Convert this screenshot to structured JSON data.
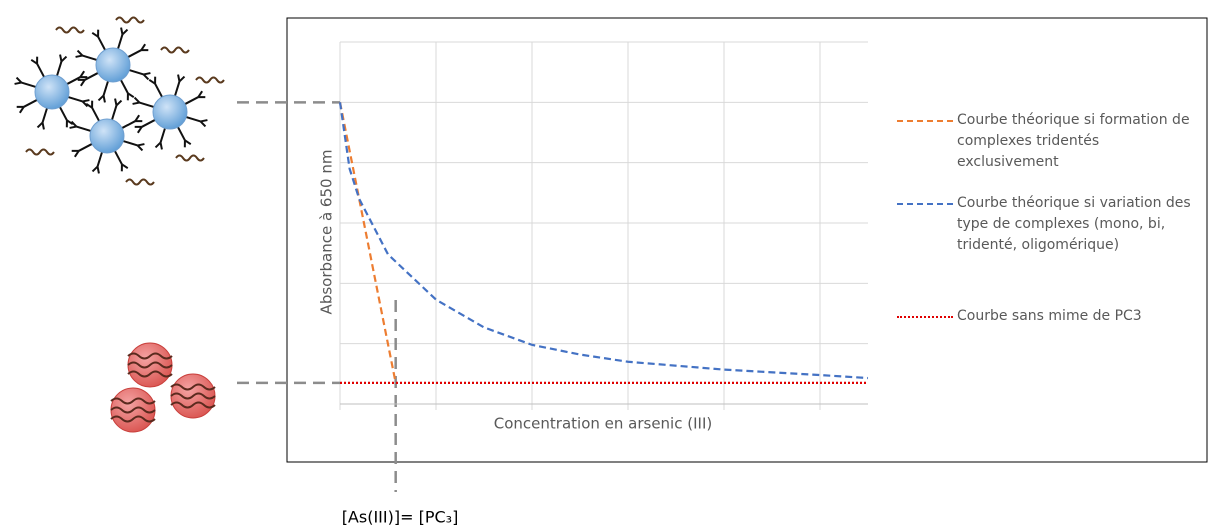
{
  "chart_data": {
    "type": "line",
    "x_label": "Concentration en arsenic (III)",
    "y_label": "Absorbance à 650 nm",
    "annotation": "[As(III)]= [PC₃]",
    "xlim": [
      0,
      5.5
    ],
    "ylim": [
      0,
      6
    ],
    "xticks": [
      0,
      1,
      2,
      3,
      4,
      5
    ],
    "yticks": [
      0,
      1,
      2,
      3,
      4,
      5,
      6
    ],
    "grid": true,
    "series": [
      {
        "name": "Courbe théorique si formation de complexes tridentés exclusivement",
        "color": "#ed7d31",
        "dash": "dashed",
        "x": [
          0,
          0.58
        ],
        "values": [
          5,
          0.35
        ]
      },
      {
        "name": "Courbe théorique si variation des type de complexes (mono, bi, tridenté, oligomérique)",
        "color": "#4472c4",
        "dash": "dashed",
        "x": [
          0,
          0.1,
          0.2,
          0.5,
          1,
          1.5,
          2,
          2.5,
          3,
          4,
          5,
          5.5
        ],
        "values": [
          5,
          3.9,
          3.4,
          2.48,
          1.73,
          1.27,
          0.98,
          0.82,
          0.7,
          0.57,
          0.48,
          0.43
        ]
      },
      {
        "name": "Courbe sans mime de PC3",
        "color": "#e00000",
        "dash": "dotted",
        "x": [
          0,
          5.5
        ],
        "values": [
          0.35,
          0.35
        ]
      }
    ]
  }
}
